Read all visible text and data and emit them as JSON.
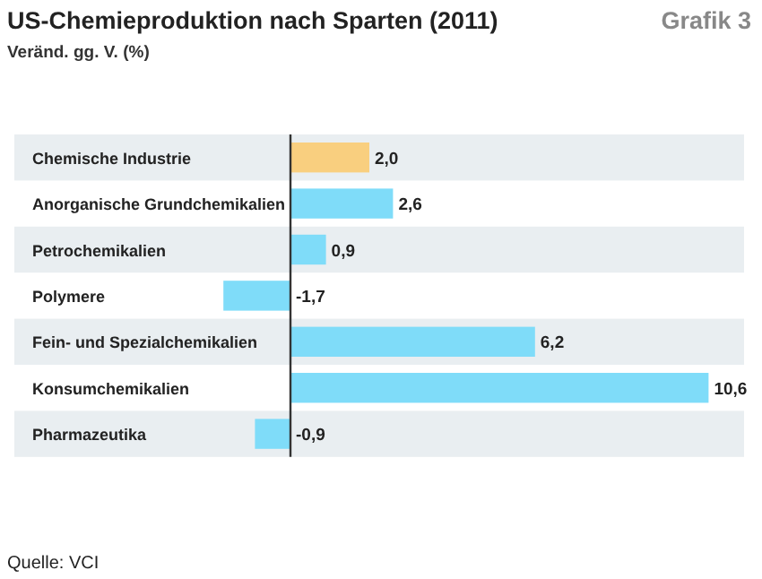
{
  "chart_data": {
    "type": "bar",
    "orientation": "horizontal",
    "title": "US-Chemieproduktion nach Sparten (2011)",
    "subtitle": "Veränd. gg. V. (%)",
    "categories": [
      "Chemische Industrie",
      "Anorganische Grundchemikalien",
      "Petrochemikalien",
      "Polymere",
      "Fein- und Spezialchemikalien",
      "Konsumchemikalien",
      "Pharmazeutika"
    ],
    "values": [
      2.0,
      2.6,
      0.9,
      -1.7,
      6.2,
      10.6,
      -0.9
    ],
    "colors": [
      "#f9cf7f",
      "#7fdcf9",
      "#7fdcf9",
      "#7fdcf9",
      "#7fdcf9",
      "#7fdcf9",
      "#7fdcf9"
    ],
    "value_labels": [
      "2,0",
      "2,6",
      "0,9",
      "-1,7",
      "6,2",
      "10,6",
      "-0,9"
    ],
    "xlim": [
      -7,
      11.5
    ],
    "annotations": [
      "Grafik 3",
      "Quelle: VCI"
    ]
  }
}
